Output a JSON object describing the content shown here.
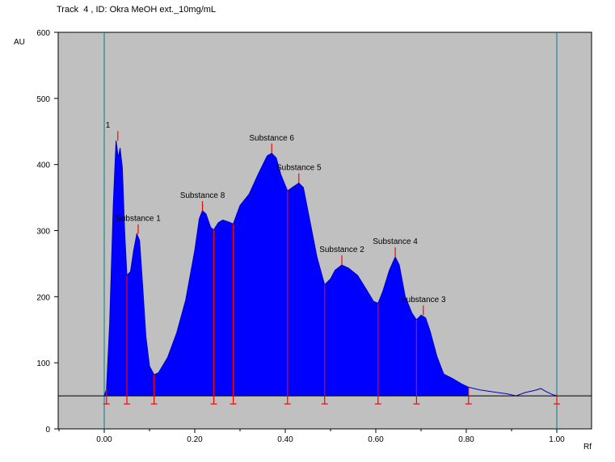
{
  "chart_data": {
    "type": "area",
    "title": "Track  4 , ID: Okra MeOH ext._10mg/mL",
    "ylabel": "AU",
    "xlabel": "Rf",
    "xlim": [
      -0.1,
      1.08
    ],
    "ylim": [
      0,
      600
    ],
    "x_ticks": [
      0.0,
      0.2,
      0.4,
      0.6,
      0.8,
      1.0
    ],
    "x_tick_labels": [
      "0.00",
      "0.20",
      "0.40",
      "0.60",
      "0.80",
      "1.00"
    ],
    "y_ticks": [
      0,
      100,
      200,
      300,
      400,
      500,
      600
    ],
    "y_tick_labels": [
      "0",
      "100",
      "200",
      "300",
      "400",
      "500",
      "600"
    ],
    "baseline": 50,
    "front_lines": [
      0.0,
      1.0
    ],
    "colors": {
      "plot_bg": "#c0c0c0",
      "fill": "#0000ff",
      "curve": "#0000cc",
      "peak_marker": "#ff0000",
      "front_line": "#008080",
      "baseline": "#000000"
    },
    "profile": [
      {
        "x": 0.0,
        "y": 50
      },
      {
        "x": 0.005,
        "y": 60
      },
      {
        "x": 0.012,
        "y": 160
      },
      {
        "x": 0.02,
        "y": 340
      },
      {
        "x": 0.026,
        "y": 436
      },
      {
        "x": 0.031,
        "y": 410
      },
      {
        "x": 0.035,
        "y": 425
      },
      {
        "x": 0.04,
        "y": 395
      },
      {
        "x": 0.045,
        "y": 300
      },
      {
        "x": 0.05,
        "y": 232
      },
      {
        "x": 0.058,
        "y": 238
      },
      {
        "x": 0.065,
        "y": 270
      },
      {
        "x": 0.072,
        "y": 295
      },
      {
        "x": 0.078,
        "y": 285
      },
      {
        "x": 0.085,
        "y": 215
      },
      {
        "x": 0.092,
        "y": 140
      },
      {
        "x": 0.1,
        "y": 95
      },
      {
        "x": 0.11,
        "y": 82
      },
      {
        "x": 0.12,
        "y": 85
      },
      {
        "x": 0.14,
        "y": 108
      },
      {
        "x": 0.16,
        "y": 145
      },
      {
        "x": 0.18,
        "y": 195
      },
      {
        "x": 0.2,
        "y": 270
      },
      {
        "x": 0.21,
        "y": 318
      },
      {
        "x": 0.217,
        "y": 330
      },
      {
        "x": 0.225,
        "y": 325
      },
      {
        "x": 0.235,
        "y": 305
      },
      {
        "x": 0.242,
        "y": 301
      },
      {
        "x": 0.252,
        "y": 312
      },
      {
        "x": 0.262,
        "y": 316
      },
      {
        "x": 0.275,
        "y": 313
      },
      {
        "x": 0.285,
        "y": 310
      },
      {
        "x": 0.3,
        "y": 338
      },
      {
        "x": 0.32,
        "y": 355
      },
      {
        "x": 0.34,
        "y": 385
      },
      {
        "x": 0.36,
        "y": 413
      },
      {
        "x": 0.37,
        "y": 417
      },
      {
        "x": 0.38,
        "y": 410
      },
      {
        "x": 0.39,
        "y": 385
      },
      {
        "x": 0.405,
        "y": 360
      },
      {
        "x": 0.415,
        "y": 365
      },
      {
        "x": 0.43,
        "y": 372
      },
      {
        "x": 0.44,
        "y": 365
      },
      {
        "x": 0.45,
        "y": 330
      },
      {
        "x": 0.47,
        "y": 260
      },
      {
        "x": 0.487,
        "y": 218
      },
      {
        "x": 0.5,
        "y": 227
      },
      {
        "x": 0.51,
        "y": 240
      },
      {
        "x": 0.525,
        "y": 248
      },
      {
        "x": 0.54,
        "y": 243
      },
      {
        "x": 0.56,
        "y": 232
      },
      {
        "x": 0.58,
        "y": 210
      },
      {
        "x": 0.595,
        "y": 193
      },
      {
        "x": 0.605,
        "y": 190
      },
      {
        "x": 0.615,
        "y": 207
      },
      {
        "x": 0.63,
        "y": 240
      },
      {
        "x": 0.643,
        "y": 260
      },
      {
        "x": 0.652,
        "y": 248
      },
      {
        "x": 0.665,
        "y": 200
      },
      {
        "x": 0.68,
        "y": 175
      },
      {
        "x": 0.69,
        "y": 165
      },
      {
        "x": 0.7,
        "y": 172
      },
      {
        "x": 0.71,
        "y": 168
      },
      {
        "x": 0.72,
        "y": 148
      },
      {
        "x": 0.735,
        "y": 110
      },
      {
        "x": 0.75,
        "y": 83
      },
      {
        "x": 0.77,
        "y": 76
      },
      {
        "x": 0.79,
        "y": 68
      },
      {
        "x": 0.805,
        "y": 63
      },
      {
        "x": 0.83,
        "y": 59
      },
      {
        "x": 0.86,
        "y": 56
      },
      {
        "x": 0.89,
        "y": 53
      },
      {
        "x": 0.91,
        "y": 50
      },
      {
        "x": 0.93,
        "y": 55
      },
      {
        "x": 0.95,
        "y": 58
      },
      {
        "x": 0.965,
        "y": 61
      },
      {
        "x": 0.975,
        "y": 57
      },
      {
        "x": 0.99,
        "y": 52
      },
      {
        "x": 1.0,
        "y": 50
      }
    ],
    "fill_end_x": 0.805,
    "peaks": [
      {
        "label": "1",
        "x": 0.03,
        "y": 436
      },
      {
        "label": "Substance 1",
        "x": 0.075,
        "y": 295
      },
      {
        "label": "Substance 8",
        "x": 0.217,
        "y": 330
      },
      {
        "label": "Substance 6",
        "x": 0.37,
        "y": 417
      },
      {
        "label": "Substance 5",
        "x": 0.43,
        "y": 372
      },
      {
        "label": "Substance 2",
        "x": 0.525,
        "y": 248
      },
      {
        "label": "Substance 4",
        "x": 0.643,
        "y": 260
      },
      {
        "label": "Substance 3",
        "x": 0.705,
        "y": 172
      }
    ],
    "boundaries": [
      {
        "x": 0.005,
        "y": 60
      },
      {
        "x": 0.05,
        "y": 232
      },
      {
        "x": 0.11,
        "y": 82
      },
      {
        "x": 0.242,
        "y": 301
      },
      {
        "x": 0.285,
        "y": 310
      },
      {
        "x": 0.405,
        "y": 360
      },
      {
        "x": 0.487,
        "y": 218
      },
      {
        "x": 0.605,
        "y": 190
      },
      {
        "x": 0.69,
        "y": 165
      },
      {
        "x": 0.805,
        "y": 63
      },
      {
        "x": 1.0,
        "y": 50
      }
    ]
  }
}
